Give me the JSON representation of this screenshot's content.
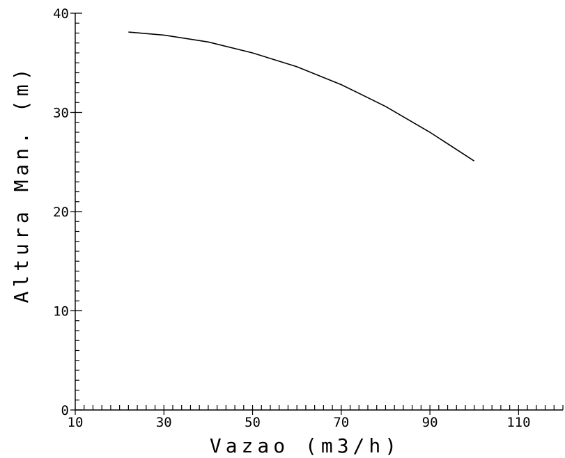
{
  "chart_data": {
    "type": "line",
    "xlabel": "Vazao (m3/h)",
    "ylabel": "Altura Man. (m)",
    "xlim": [
      10,
      120
    ],
    "ylim": [
      0,
      40
    ],
    "x_ticks": [
      "10",
      "30",
      "50",
      "70",
      "90",
      "110"
    ],
    "y_ticks": [
      "0",
      "10",
      "20",
      "30",
      "40"
    ],
    "grid": false,
    "series": [
      {
        "x": [
          22,
          30,
          40,
          50,
          60,
          70,
          80,
          90,
          100
        ],
        "y": [
          38.1,
          37.8,
          37.1,
          36.0,
          34.6,
          32.8,
          30.6,
          28.0,
          25.1
        ]
      }
    ]
  }
}
